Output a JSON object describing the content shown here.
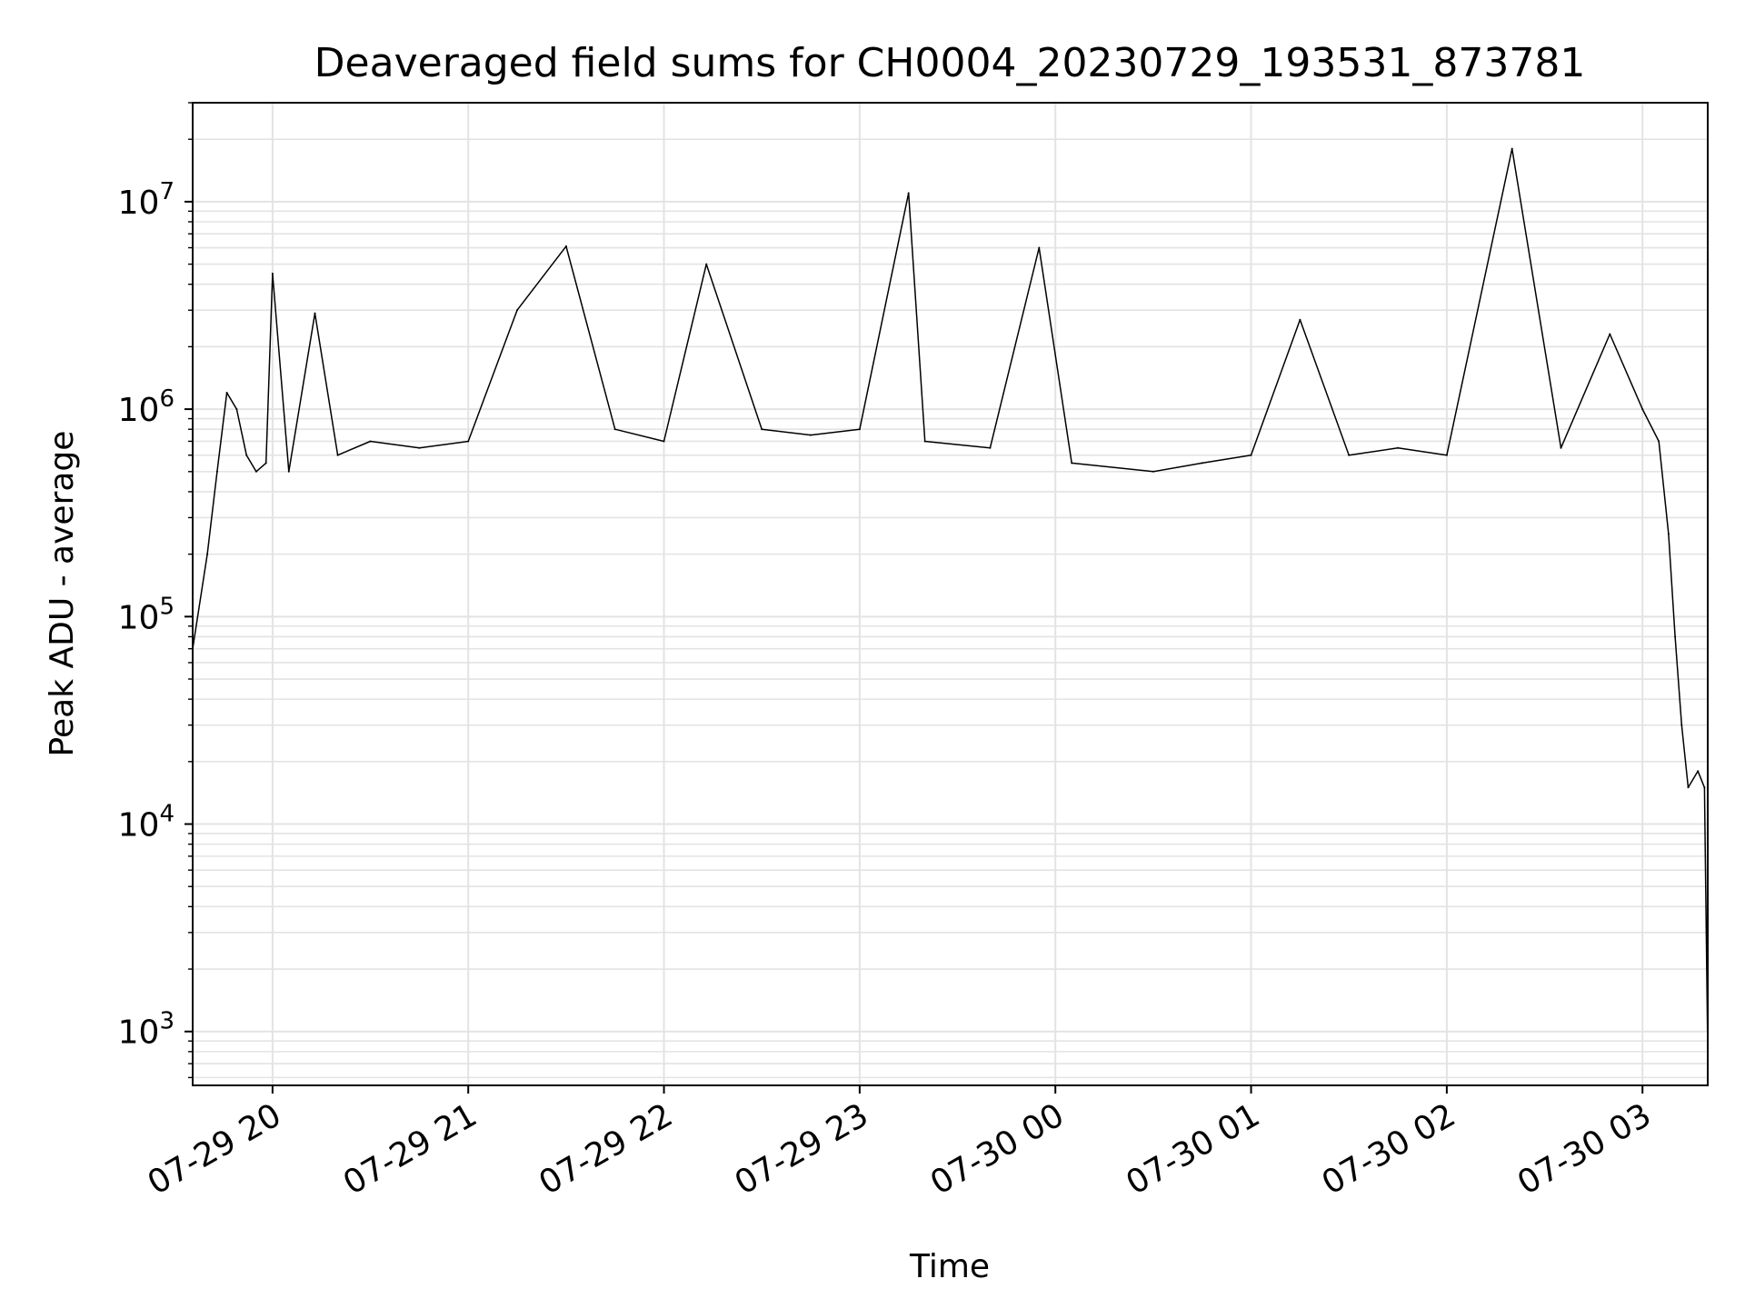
{
  "chart_data": {
    "type": "line",
    "title": "Deaveraged field sums for CH0004_20230729_193531_873781",
    "xlabel": "Time",
    "ylabel": "Peak ADU - average",
    "yscale": "log",
    "grid": true,
    "legend": "none",
    "xlim": [
      "2023-07-29 19:35:31",
      "2023-07-30 03:20:00"
    ],
    "ylim": [
      550,
      30000000
    ],
    "x_ticks": [
      {
        "value": "2023-07-29 20:00",
        "label": "07-29 20"
      },
      {
        "value": "2023-07-29 21:00",
        "label": "07-29 21"
      },
      {
        "value": "2023-07-29 22:00",
        "label": "07-29 22"
      },
      {
        "value": "2023-07-29 23:00",
        "label": "07-29 23"
      },
      {
        "value": "2023-07-30 00:00",
        "label": "07-30 00"
      },
      {
        "value": "2023-07-30 01:00",
        "label": "07-30 01"
      },
      {
        "value": "2023-07-30 02:00",
        "label": "07-30 02"
      },
      {
        "value": "2023-07-30 03:00",
        "label": "07-30 03"
      }
    ],
    "y_ticks": [
      {
        "value": 1000,
        "base": "10",
        "exp": "3"
      },
      {
        "value": 10000,
        "base": "10",
        "exp": "4"
      },
      {
        "value": 100000,
        "base": "10",
        "exp": "5"
      },
      {
        "value": 1000000,
        "base": "10",
        "exp": "6"
      },
      {
        "value": 10000000,
        "base": "10",
        "exp": "7"
      }
    ],
    "series": [
      {
        "color": "#000000",
        "x": [
          "2023-07-29 19:35:31",
          "2023-07-29 19:40:00",
          "2023-07-29 19:43:00",
          "2023-07-29 19:46:00",
          "2023-07-29 19:49:00",
          "2023-07-29 19:52:00",
          "2023-07-29 19:55:00",
          "2023-07-29 19:58:00",
          "2023-07-29 20:00:00",
          "2023-07-29 20:05:00",
          "2023-07-29 20:13:00",
          "2023-07-29 20:20:00",
          "2023-07-29 20:30:00",
          "2023-07-29 20:45:00",
          "2023-07-29 21:00:00",
          "2023-07-29 21:15:00",
          "2023-07-29 21:30:00",
          "2023-07-29 21:45:00",
          "2023-07-29 22:00:00",
          "2023-07-29 22:13:00",
          "2023-07-29 22:30:00",
          "2023-07-29 22:45:00",
          "2023-07-29 23:00:00",
          "2023-07-29 23:15:00",
          "2023-07-29 23:20:00",
          "2023-07-29 23:40:00",
          "2023-07-29 23:55:00",
          "2023-07-30 00:05:00",
          "2023-07-30 00:30:00",
          "2023-07-30 00:45:00",
          "2023-07-30 01:00:00",
          "2023-07-30 01:15:00",
          "2023-07-30 01:30:00",
          "2023-07-30 01:45:00",
          "2023-07-30 02:00:00",
          "2023-07-30 02:20:00",
          "2023-07-30 02:35:00",
          "2023-07-30 02:50:00",
          "2023-07-30 03:00:00",
          "2023-07-30 03:05:00",
          "2023-07-30 03:08:00",
          "2023-07-30 03:10:00",
          "2023-07-30 03:12:00",
          "2023-07-30 03:14:00",
          "2023-07-30 03:17:00",
          "2023-07-30 03:19:00",
          "2023-07-30 03:20:00"
        ],
        "y": [
          70000,
          200000,
          500000,
          1200000,
          1000000,
          600000,
          500000,
          550000,
          4500000,
          500000,
          2900000,
          600000,
          700000,
          650000,
          700000,
          3000000,
          6100000,
          800000,
          700000,
          5000000,
          800000,
          750000,
          800000,
          11000000,
          700000,
          650000,
          6000000,
          550000,
          500000,
          550000,
          600000,
          2700000,
          600000,
          650000,
          600000,
          18000000,
          650000,
          2300000,
          1000000,
          700000,
          250000,
          80000,
          30000,
          15000,
          18000,
          15000,
          800
        ]
      }
    ]
  }
}
